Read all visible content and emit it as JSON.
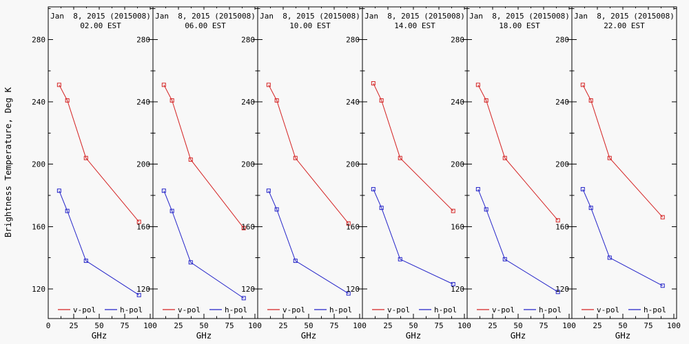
{
  "chart_data": {
    "type": "line",
    "layout": "six small-multiple panels, shared y-scale, legend inside each panel bottom, grid off",
    "title": "",
    "xlabel": "GHz",
    "ylabel": "Brightness Temperature, Deg K",
    "xlim": [
      0,
      103
    ],
    "ylim": [
      100,
      300
    ],
    "x": [
      10.7,
      18.7,
      37,
      89
    ],
    "x_ticks": [
      0,
      25,
      50,
      75,
      100
    ],
    "x_minor_ticks": [
      12.5,
      37.5,
      62.5,
      87.5
    ],
    "y_ticks": [
      120,
      160,
      200,
      240,
      280
    ],
    "y_minor_ticks": [
      140,
      180,
      220,
      260,
      300
    ],
    "colors": {
      "v_pol": "#d42222",
      "h_pol": "#2222c8",
      "axis": "#000000",
      "background": "#f8f8f8"
    },
    "legend": {
      "v_label": "v-pol",
      "h_label": "h-pol",
      "position": "inside-bottom"
    },
    "panels": [
      {
        "title_date": "Jan  8, 2015 (2015008)",
        "title_time": "02.00 EST",
        "series": [
          {
            "name": "v-pol",
            "values": [
              251,
              241,
              204,
              163
            ]
          },
          {
            "name": "h-pol",
            "values": [
              183,
              170,
              138,
              116
            ]
          }
        ]
      },
      {
        "title_date": "Jan  8, 2015 (2015008)",
        "title_time": "06.00 EST",
        "series": [
          {
            "name": "v-pol",
            "values": [
              251,
              241,
              203,
              159
            ]
          },
          {
            "name": "h-pol",
            "values": [
              183,
              170,
              137,
              114
            ]
          }
        ]
      },
      {
        "title_date": "Jan  8, 2015 (2015008)",
        "title_time": "10.00 EST",
        "series": [
          {
            "name": "v-pol",
            "values": [
              251,
              241,
              204,
              162
            ]
          },
          {
            "name": "h-pol",
            "values": [
              183,
              171,
              138,
              117
            ]
          }
        ]
      },
      {
        "title_date": "Jan  8, 2015 (2015008)",
        "title_time": "14.00 EST",
        "series": [
          {
            "name": "v-pol",
            "values": [
              252,
              241,
              204,
              170
            ]
          },
          {
            "name": "h-pol",
            "values": [
              184,
              172,
              139,
              123
            ]
          }
        ]
      },
      {
        "title_date": "Jan  8, 2015 (2015008)",
        "title_time": "18.00 EST",
        "series": [
          {
            "name": "v-pol",
            "values": [
              251,
              241,
              204,
              164
            ]
          },
          {
            "name": "h-pol",
            "values": [
              184,
              171,
              139,
              118
            ]
          }
        ]
      },
      {
        "title_date": "Jan  8, 2015 (2015008)",
        "title_time": "22.00 EST",
        "series": [
          {
            "name": "v-pol",
            "values": [
              251,
              241,
              204,
              166
            ]
          },
          {
            "name": "h-pol",
            "values": [
              184,
              172,
              140,
              122
            ]
          }
        ]
      }
    ]
  }
}
